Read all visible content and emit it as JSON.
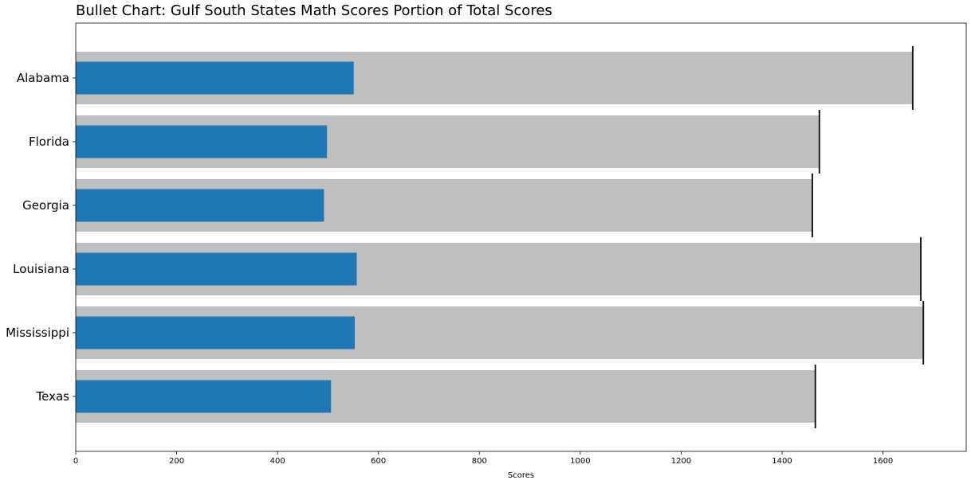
{
  "chart_data": {
    "type": "bar",
    "subtype": "bullet",
    "orientation": "horizontal",
    "title": "Bullet Chart: Gulf South States Math Scores Portion of Total Scores",
    "xlabel": "Scores",
    "ylabel": "",
    "categories": [
      "Alabama",
      "Florida",
      "Georgia",
      "Louisiana",
      "Mississippi",
      "Texas"
    ],
    "series": [
      {
        "role": "range",
        "values": [
          1659,
          1474,
          1460,
          1675,
          1680,
          1466
        ]
      },
      {
        "role": "measure",
        "values": [
          551,
          498,
          492,
          557,
          553,
          506
        ]
      },
      {
        "role": "target",
        "values": [
          1659,
          1474,
          1460,
          1675,
          1680,
          1466
        ]
      }
    ],
    "xlim": [
      0,
      1765
    ],
    "xticks": [
      0,
      200,
      400,
      600,
      800,
      1000,
      1200,
      1400,
      1600
    ],
    "grid": false,
    "colors": {
      "range": "#bfbfbf",
      "measure": "#1f77b4",
      "target": "#1a1a1a",
      "axis": "#000000"
    }
  }
}
